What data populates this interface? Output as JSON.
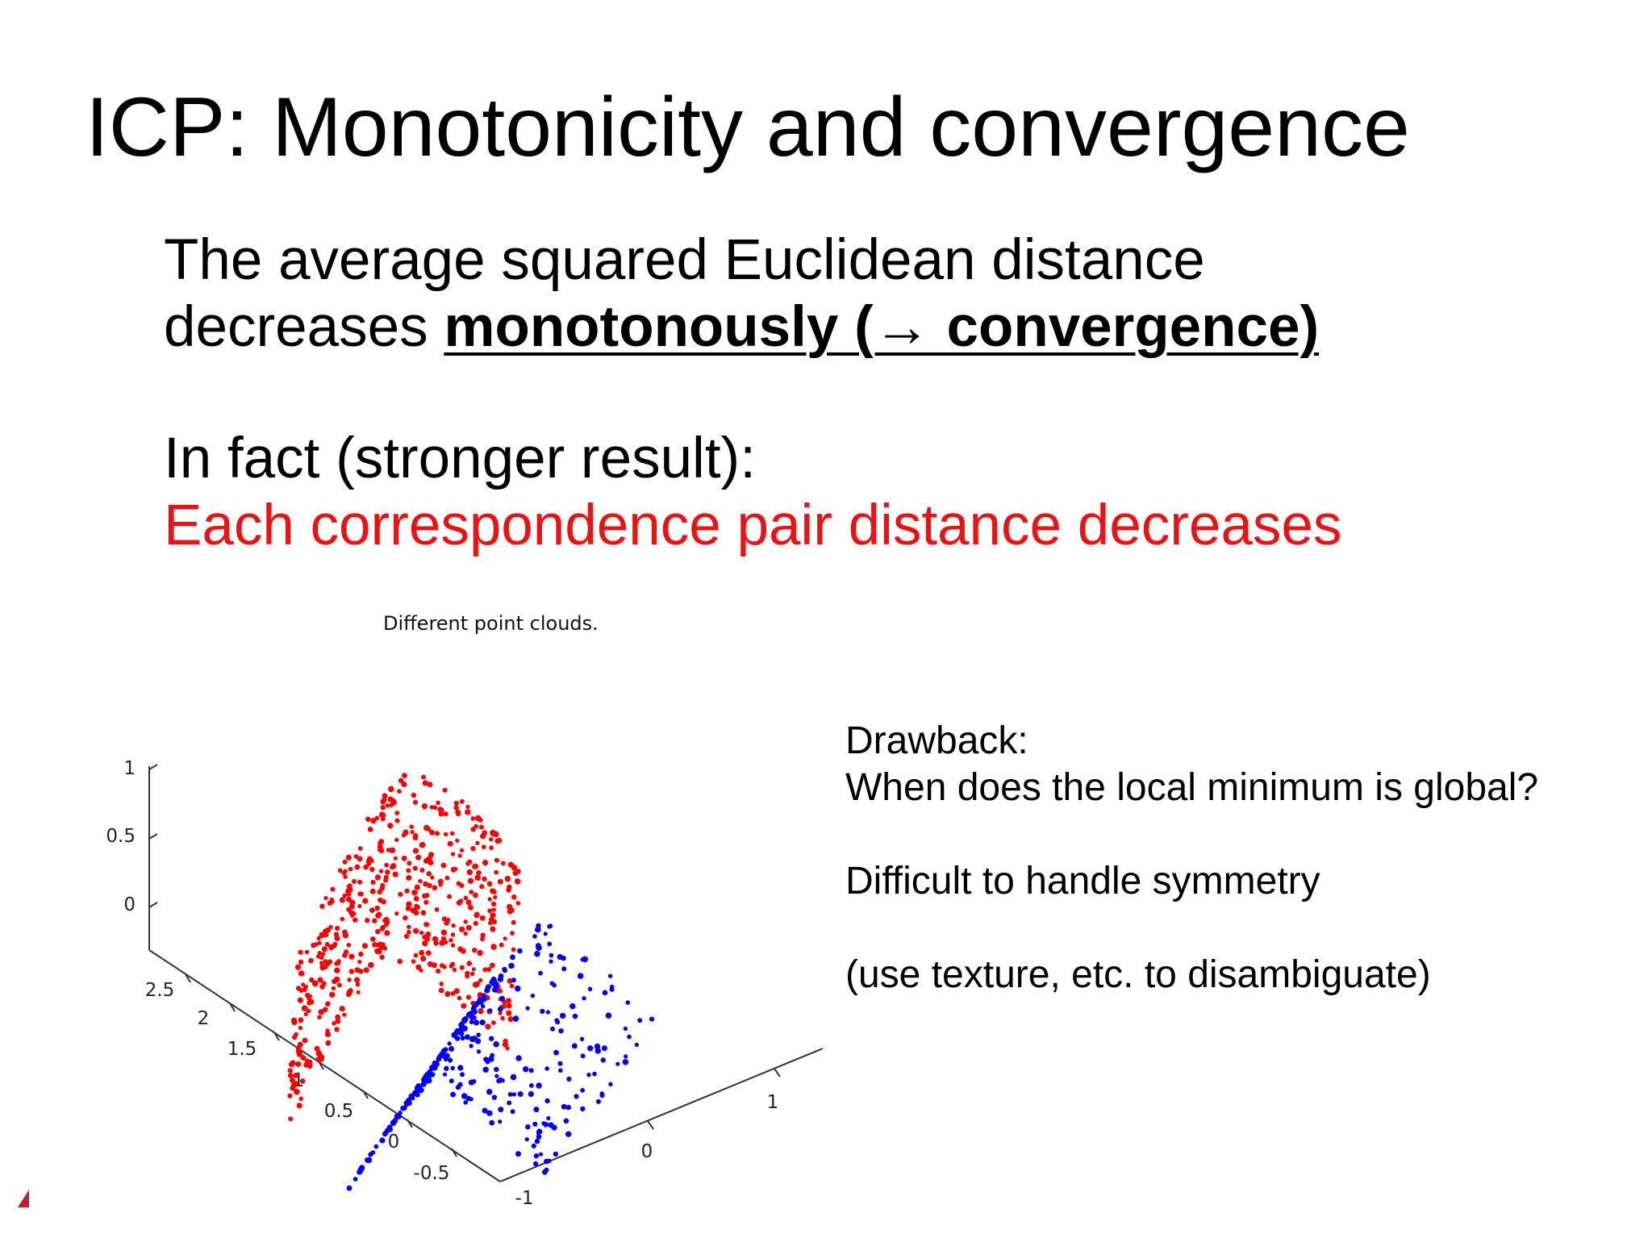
{
  "slide": {
    "title": "ICP: Monotonicity and convergence",
    "statement": {
      "line1": "The average squared Euclidean distance",
      "line2_prefix": "decreases ",
      "line2_emphasis": "monotonously (→ convergence)"
    },
    "stronger": {
      "line1": "In fact (stronger result):",
      "line2": "Each correspondence pair distance decreases"
    },
    "side_notes": {
      "drawback_label": "Drawback:",
      "drawback_question": "When does the local minimum is global?",
      "symmetry": "Difficult to handle symmetry",
      "texture": "(use texture, etc. to disambiguate)"
    },
    "accent_color": "#ee1111"
  },
  "figure": {
    "title": "Different point clouds.",
    "z_ticks": [
      "1",
      "0.5",
      "0"
    ],
    "y_ticks": [
      "2.5",
      "2",
      "1.5",
      "1",
      "0.5",
      "0",
      "-0.5"
    ],
    "x_ticks": [
      "-1",
      "0",
      "1"
    ],
    "series_colors": {
      "cloud_a": "#ff0000",
      "cloud_b": "#0000ff"
    }
  }
}
